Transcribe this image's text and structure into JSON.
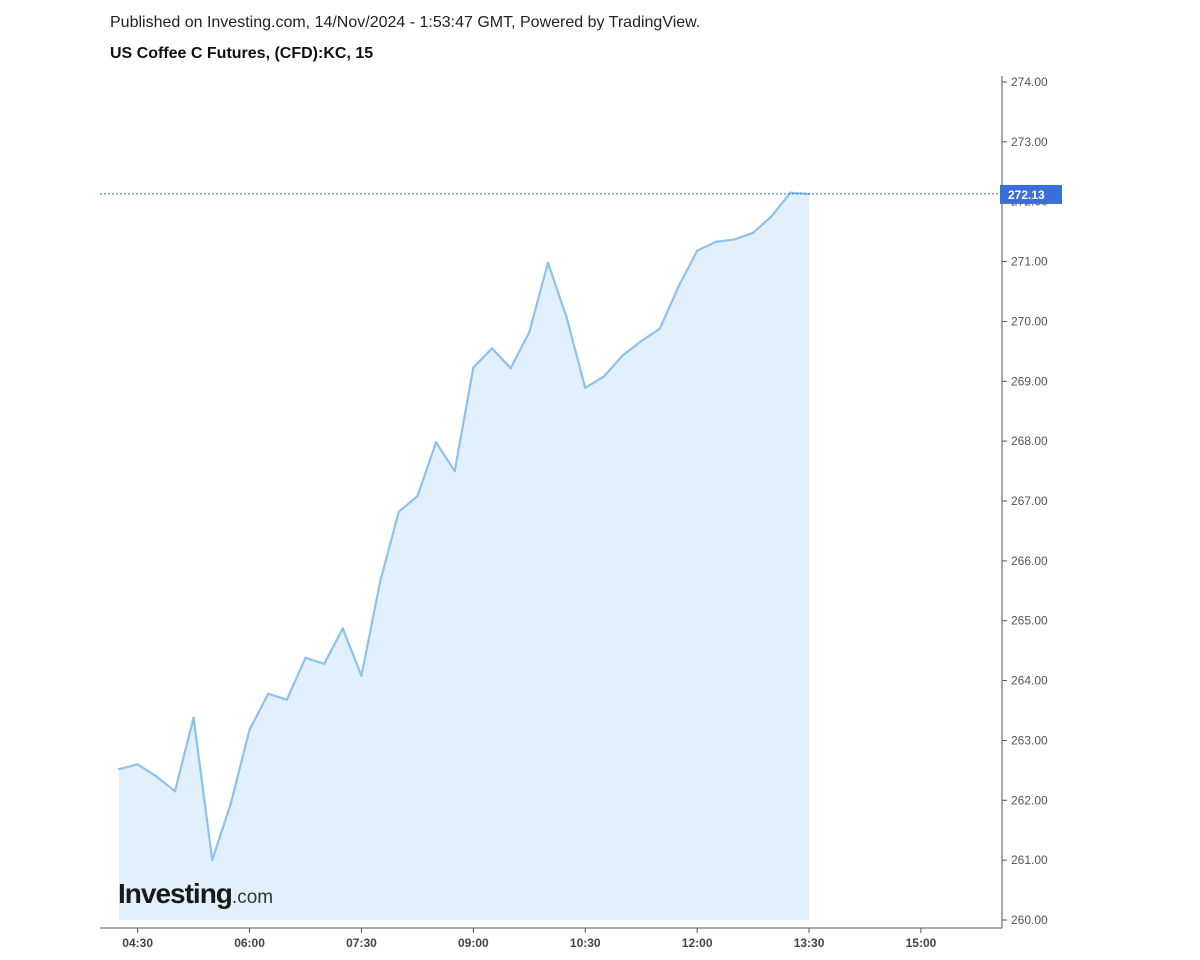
{
  "header": {
    "published": "Published on Investing.com, 14/Nov/2024 - 1:53:47 GMT, Powered by TradingView.",
    "title": "US Coffee C Futures, (CFD):KC, 15"
  },
  "logo": {
    "main": "Investing",
    "suffix": ".com"
  },
  "colors": {
    "line": "#8ec1ee",
    "fill": "#e1f0fa",
    "price_line": "#3b6fd8",
    "price_label_bg": "#3b6fd8",
    "axis": "#555555"
  },
  "chart_data": {
    "type": "area",
    "title": "US Coffee C Futures, (CFD):KC, 15",
    "x": [
      "04:15",
      "04:30",
      "04:45",
      "05:00",
      "05:15",
      "05:30",
      "05:45",
      "06:00",
      "06:15",
      "06:30",
      "06:45",
      "07:00",
      "07:15",
      "07:30",
      "07:45",
      "08:00",
      "08:15",
      "08:30",
      "08:45",
      "09:00",
      "09:15",
      "09:30",
      "09:45",
      "10:00",
      "10:15",
      "10:30",
      "10:45",
      "11:00",
      "11:15",
      "11:30",
      "11:45",
      "12:00",
      "12:15",
      "12:30",
      "12:45",
      "13:00",
      "13:15",
      "13:30"
    ],
    "series": [
      {
        "values": [
          262.52,
          262.6,
          262.4,
          262.15,
          263.38,
          261.0,
          261.95,
          263.18,
          263.78,
          263.68,
          264.38,
          264.28,
          264.87,
          264.08,
          265.65,
          266.82,
          267.08,
          267.98,
          267.5,
          269.23,
          269.55,
          269.22,
          269.82,
          270.98,
          270.07,
          268.89,
          269.08,
          269.43,
          269.67,
          269.88,
          270.58,
          271.18,
          271.33,
          271.37,
          271.48,
          271.76,
          272.15,
          272.13
        ]
      }
    ],
    "x_tick_labels": [
      "04:30",
      "06:00",
      "07:30",
      "09:00",
      "10:30",
      "12:00",
      "13:30",
      "15:00"
    ],
    "y_tick_labels": [
      "274.00",
      "273.00",
      "272.00",
      "271.00",
      "270.00",
      "269.00",
      "268.00",
      "267.00",
      "266.00",
      "265.00",
      "264.00",
      "263.00",
      "262.00",
      "261.00",
      "260.00"
    ],
    "ylim": [
      260,
      274
    ],
    "last_price": "272.13",
    "grid": false
  }
}
